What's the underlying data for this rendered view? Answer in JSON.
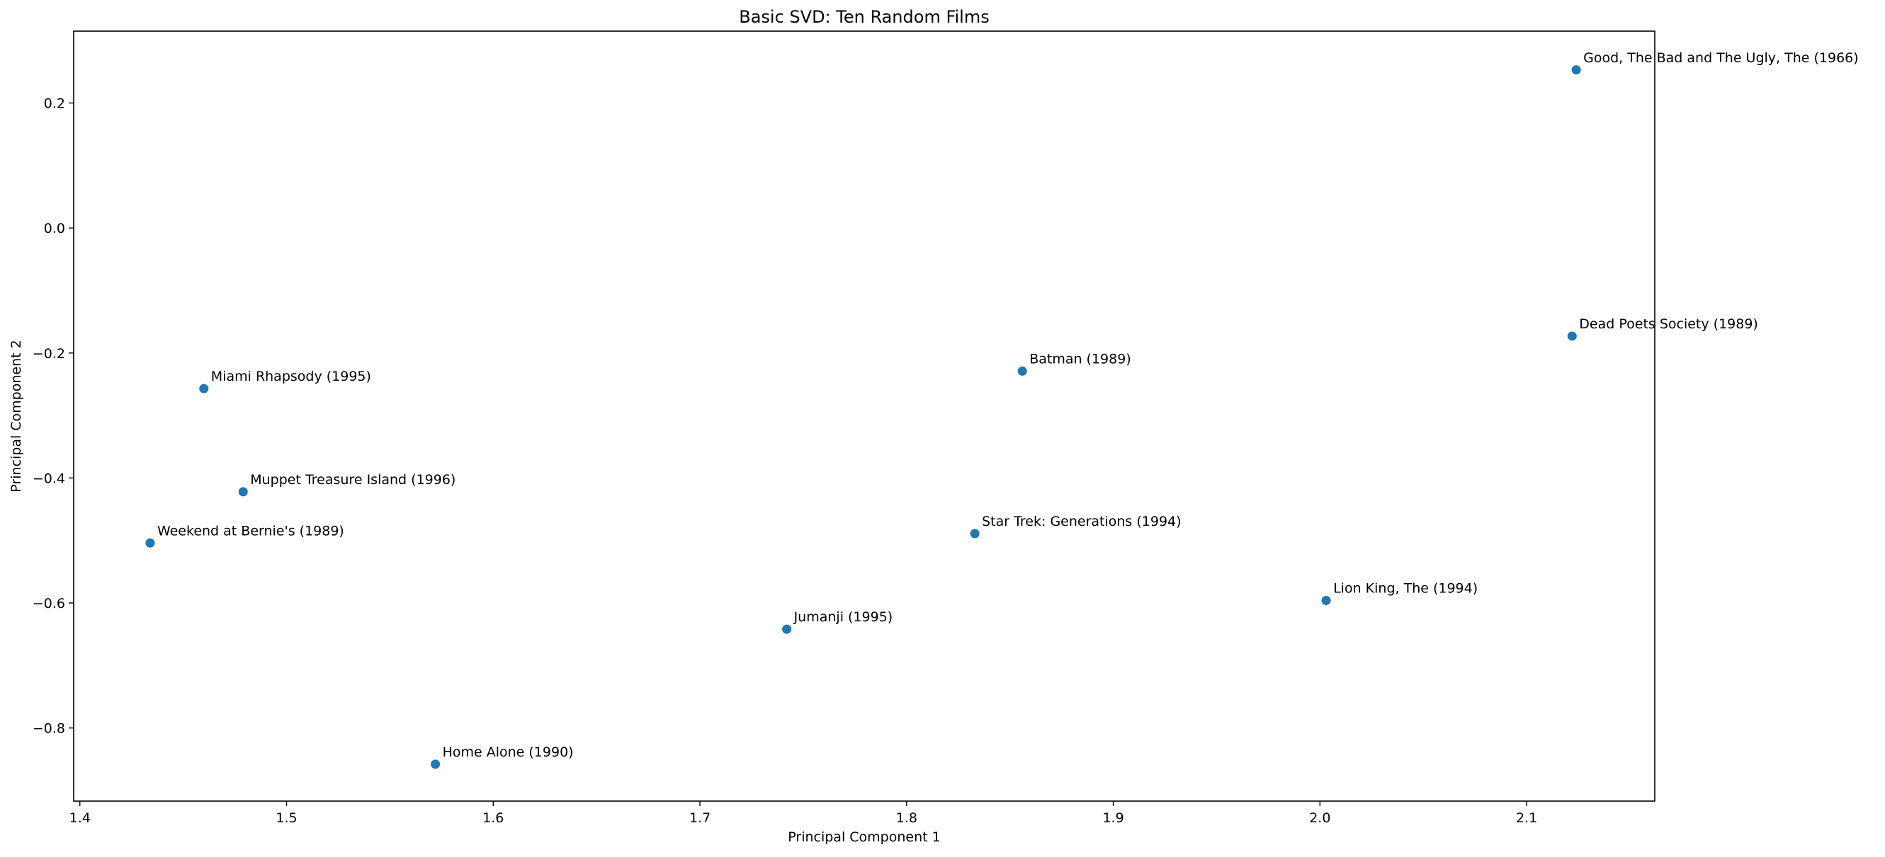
{
  "chart_data": {
    "type": "scatter",
    "title": "Basic SVD: Ten Random Films",
    "xlabel": "Principal Component 1",
    "ylabel": "Principal Component 2",
    "xlim": [
      1.397,
      2.162
    ],
    "ylim": [
      -0.917,
      0.315
    ],
    "xticks": [
      1.4,
      1.5,
      1.6,
      1.7,
      1.8,
      1.9,
      2.0,
      2.1
    ],
    "xtick_labels": [
      "1.4",
      "1.5",
      "1.6",
      "1.7",
      "1.8",
      "1.9",
      "2.0",
      "2.1"
    ],
    "yticks": [
      0.2,
      0.0,
      -0.2,
      -0.4,
      -0.6,
      -0.8
    ],
    "ytick_labels": [
      "0.2",
      "0.0",
      "−0.2",
      "−0.4",
      "−0.6",
      "−0.8"
    ],
    "grid": false,
    "marker_color": "#1f77b4",
    "points": [
      {
        "label": "Good, The Bad and The Ugly, The (1966)",
        "x": 2.124,
        "y": 0.253
      },
      {
        "label": "Dead Poets Society (1989)",
        "x": 2.122,
        "y": -0.173
      },
      {
        "label": "Batman (1989)",
        "x": 1.856,
        "y": -0.229
      },
      {
        "label": "Miami Rhapsody (1995)",
        "x": 1.46,
        "y": -0.257
      },
      {
        "label": "Muppet Treasure Island (1996)",
        "x": 1.479,
        "y": -0.422
      },
      {
        "label": "Weekend at Bernie's (1989)",
        "x": 1.434,
        "y": -0.504
      },
      {
        "label": "Star Trek: Generations (1994)",
        "x": 1.833,
        "y": -0.489
      },
      {
        "label": "Lion King, The (1994)",
        "x": 2.003,
        "y": -0.596
      },
      {
        "label": "Jumanji (1995)",
        "x": 1.742,
        "y": -0.642
      },
      {
        "label": "Home Alone (1990)",
        "x": 1.572,
        "y": -0.858
      }
    ]
  }
}
